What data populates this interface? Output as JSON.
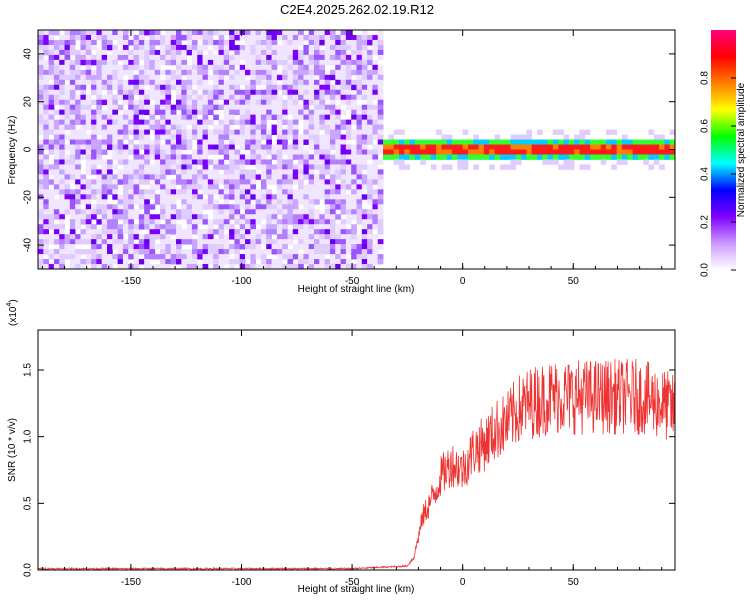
{
  "title": "C2E4.2025.262.02.19.R12",
  "chart_data": [
    {
      "type": "heatmap",
      "xlabel": "Height of straight line (km)",
      "ylabel": "Frequency (Hz)",
      "xlim": [
        -192,
        96
      ],
      "ylim": [
        -50,
        50
      ],
      "xticks": [
        -150,
        -100,
        -50,
        0,
        50
      ],
      "yticks": [
        -40,
        -20,
        0,
        20,
        40
      ],
      "noise_region_x": [
        -192,
        -36
      ],
      "signal_region_x": [
        -36,
        96
      ],
      "signal_frequency_hz": 0,
      "colorbar": {
        "label": "Normalized spectral amplitude",
        "range": [
          0,
          1
        ],
        "ticks": [
          "0.0",
          "0.2",
          "0.4",
          "0.6",
          "0.8"
        ],
        "colors": [
          "#ffffff",
          "#cc99ff",
          "#7f00ff",
          "#0000ff",
          "#00ffff",
          "#00ff00",
          "#ffff00",
          "#ff7f00",
          "#ff0000",
          "#ff0080"
        ]
      }
    },
    {
      "type": "line",
      "xlabel": "Height of straight line (km)",
      "ylabel": "SNR (10 * v/v)",
      "y_multiplier_label": "(x10",
      "y_multiplier_exp": "4",
      "xlim": [
        -192,
        96
      ],
      "ylim": [
        0,
        1.8
      ],
      "xticks": [
        -150,
        -100,
        -50,
        0,
        50
      ],
      "yticks": [
        "0.0",
        "0.5",
        "1.0",
        "1.5"
      ],
      "color": "#ee3333",
      "series": [
        {
          "x": [
            -192,
            -150,
            -100,
            -50,
            -25,
            -22,
            -20,
            -18,
            -15,
            -12,
            -10,
            -5,
            0,
            5,
            10,
            15,
            20,
            25,
            30,
            40,
            50,
            60,
            70,
            80,
            90,
            96
          ],
          "y": [
            0.01,
            0.01,
            0.01,
            0.01,
            0.03,
            0.1,
            0.25,
            0.4,
            0.5,
            0.6,
            0.7,
            0.8,
            0.75,
            0.9,
            0.95,
            1.05,
            1.1,
            1.2,
            1.25,
            1.3,
            1.3,
            1.3,
            1.3,
            1.3,
            1.25,
            1.2
          ]
        }
      ]
    }
  ]
}
